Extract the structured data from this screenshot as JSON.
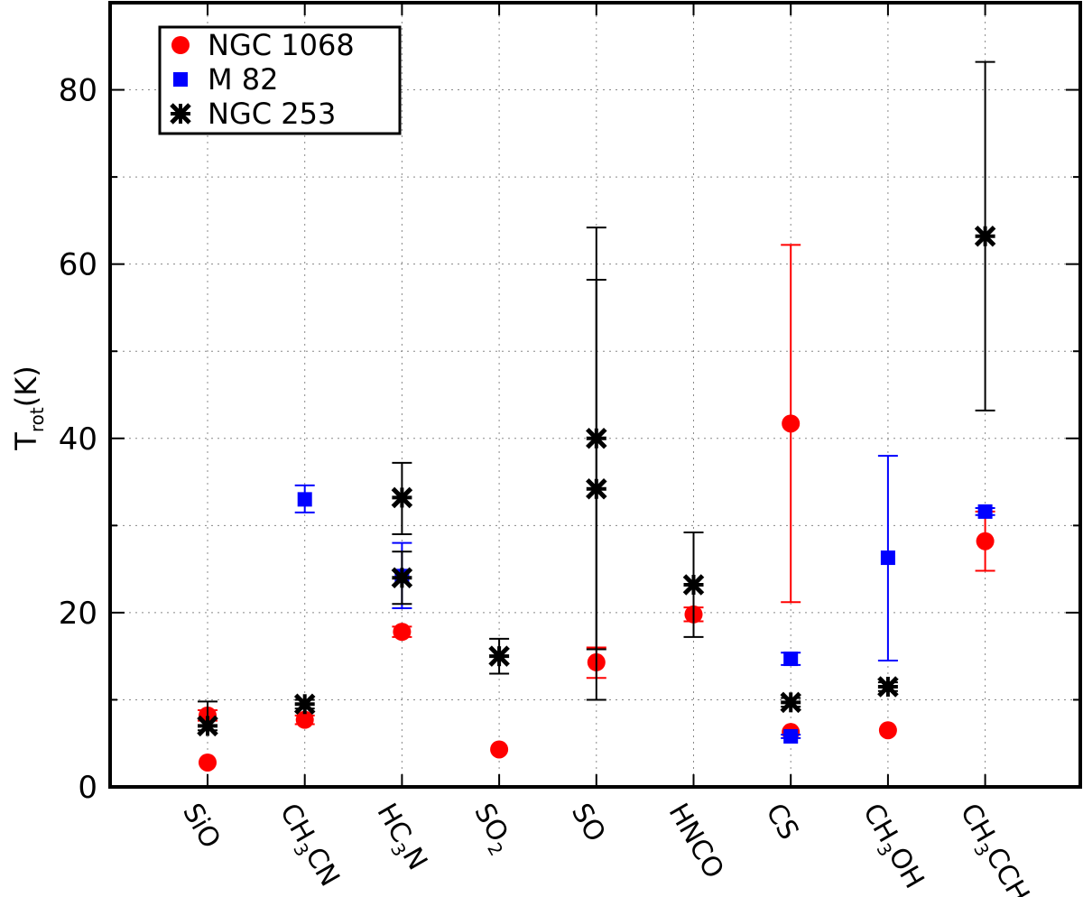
{
  "chart_data": {
    "type": "scatter",
    "ylabel_main": "T",
    "ylabel_sub": "rot",
    "ylabel_unit": "(K)",
    "ylim": [
      0,
      90
    ],
    "yticks": [
      0,
      20,
      40,
      60,
      80
    ],
    "grid": true,
    "legend_position": "top-left",
    "categories": [
      {
        "main": "SiO",
        "sub": "",
        "rest": ""
      },
      {
        "main": "CH",
        "sub": "3",
        "rest": "CN"
      },
      {
        "main": "HC",
        "sub": "3",
        "rest": "N"
      },
      {
        "main": "SO",
        "sub": "2",
        "rest": ""
      },
      {
        "main": "SO",
        "sub": "",
        "rest": ""
      },
      {
        "main": "HNCO",
        "sub": "",
        "rest": ""
      },
      {
        "main": "CS",
        "sub": "",
        "rest": ""
      },
      {
        "main": "CH",
        "sub": "3",
        "rest": "OH"
      },
      {
        "main": "CH",
        "sub": "3",
        "rest": "CCH"
      }
    ],
    "series": [
      {
        "name": "NGC 1068",
        "marker": "circle",
        "color": "#ff0000",
        "points": [
          {
            "cat": 0,
            "y": 2.8,
            "lo": 2.8,
            "hi": 2.8
          },
          {
            "cat": 0,
            "y": 8.2,
            "lo": 7.6,
            "hi": 8.8
          },
          {
            "cat": 1,
            "y": 7.7,
            "lo": 7.2,
            "hi": 8.2
          },
          {
            "cat": 2,
            "y": 17.8,
            "lo": 17.2,
            "hi": 18.4
          },
          {
            "cat": 3,
            "y": 4.3,
            "lo": 4.3,
            "hi": 4.3
          },
          {
            "cat": 4,
            "y": 14.3,
            "lo": 12.5,
            "hi": 16.0
          },
          {
            "cat": 5,
            "y": 19.8,
            "lo": 19.0,
            "hi": 20.6
          },
          {
            "cat": 6,
            "y": 41.7,
            "lo": 21.2,
            "hi": 62.2
          },
          {
            "cat": 6,
            "y": 6.3,
            "lo": 6.3,
            "hi": 6.3
          },
          {
            "cat": 7,
            "y": 6.5,
            "lo": 6.5,
            "hi": 6.5
          },
          {
            "cat": 8,
            "y": 28.2,
            "lo": 24.8,
            "hi": 31.6
          }
        ]
      },
      {
        "name": "M 82",
        "marker": "square",
        "color": "#0000ff",
        "points": [
          {
            "cat": 1,
            "y": 33.0,
            "lo": 31.5,
            "hi": 34.6
          },
          {
            "cat": 2,
            "y": 24.2,
            "lo": 20.5,
            "hi": 28.0
          },
          {
            "cat": 6,
            "y": 14.7,
            "lo": 14.0,
            "hi": 15.4
          },
          {
            "cat": 6,
            "y": 5.8,
            "lo": 5.6,
            "hi": 6.0
          },
          {
            "cat": 7,
            "y": 26.3,
            "lo": 14.5,
            "hi": 38.0
          },
          {
            "cat": 8,
            "y": 31.6,
            "lo": 31.2,
            "hi": 32.0
          }
        ]
      },
      {
        "name": "NGC 253",
        "marker": "asterisk",
        "color": "#000000",
        "points": [
          {
            "cat": 0,
            "y": 7.0,
            "lo": 6.5,
            "hi": 9.8
          },
          {
            "cat": 1,
            "y": 9.5,
            "lo": 9.0,
            "hi": 10.0
          },
          {
            "cat": 2,
            "y": 33.2,
            "lo": 29.0,
            "hi": 37.2
          },
          {
            "cat": 2,
            "y": 24.0,
            "lo": 21.0,
            "hi": 27.0
          },
          {
            "cat": 3,
            "y": 15.0,
            "lo": 13.0,
            "hi": 17.0
          },
          {
            "cat": 4,
            "y": 40.0,
            "lo": 15.8,
            "hi": 64.2
          },
          {
            "cat": 4,
            "y": 34.2,
            "lo": 10.0,
            "hi": 58.2
          },
          {
            "cat": 5,
            "y": 23.2,
            "lo": 17.2,
            "hi": 29.2
          },
          {
            "cat": 6,
            "y": 9.7,
            "lo": 9.2,
            "hi": 10.2
          },
          {
            "cat": 7,
            "y": 11.5,
            "lo": 11.0,
            "hi": 12.0
          },
          {
            "cat": 8,
            "y": 63.2,
            "lo": 43.2,
            "hi": 83.2
          }
        ]
      }
    ]
  }
}
